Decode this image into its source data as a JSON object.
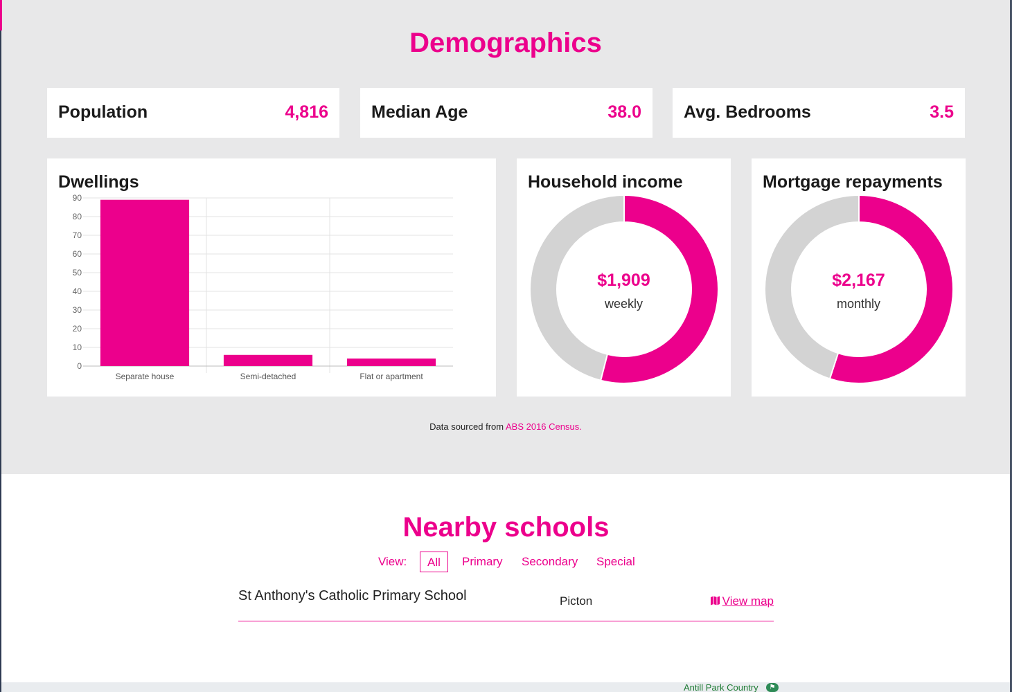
{
  "demographics": {
    "title": "Demographics",
    "stats": [
      {
        "label": "Population",
        "value": "4,816"
      },
      {
        "label": "Median Age",
        "value": "38.0"
      },
      {
        "label": "Avg. Bedrooms",
        "value": "3.5"
      }
    ],
    "dwellings": {
      "title": "Dwellings"
    },
    "household_income": {
      "title": "Household income",
      "value": "$1,909",
      "unit": "weekly"
    },
    "mortgage": {
      "title": "Mortgage repayments",
      "value": "$2,167",
      "unit": "monthly"
    },
    "source": {
      "prefix": "Data sourced from ",
      "link": "ABS 2016 Census."
    }
  },
  "chart_data": [
    {
      "type": "bar",
      "title": "Dwellings",
      "categories": [
        "Separate house",
        "Semi-detached",
        "Flat or apartment"
      ],
      "values": [
        89,
        6,
        4
      ],
      "ylim": [
        0,
        90
      ],
      "yticks": [
        0,
        10,
        20,
        30,
        40,
        50,
        60,
        70,
        80,
        90
      ],
      "grid": true,
      "color": "#ec008c"
    },
    {
      "type": "pie",
      "title": "Household income",
      "values": [
        54,
        46
      ],
      "colors": [
        "#ec008c",
        "#d3d3d3"
      ]
    },
    {
      "type": "pie",
      "title": "Mortgage repayments",
      "values": [
        55,
        45
      ],
      "colors": [
        "#ec008c",
        "#d3d3d3"
      ]
    }
  ],
  "schools": {
    "title": "Nearby schools",
    "view_label": "View:",
    "filters": [
      "All",
      "Primary",
      "Secondary",
      "Special"
    ],
    "active_filter": "All",
    "list": [
      {
        "name": "St Anthony's Catholic Primary School",
        "suburb": "Picton",
        "map_link": "View map"
      }
    ]
  },
  "map": {
    "label": "Antill Park Country"
  },
  "colors": {
    "accent": "#ec008c",
    "section_bg": "#e8e8e9",
    "donut_track": "#d3d3d3"
  }
}
